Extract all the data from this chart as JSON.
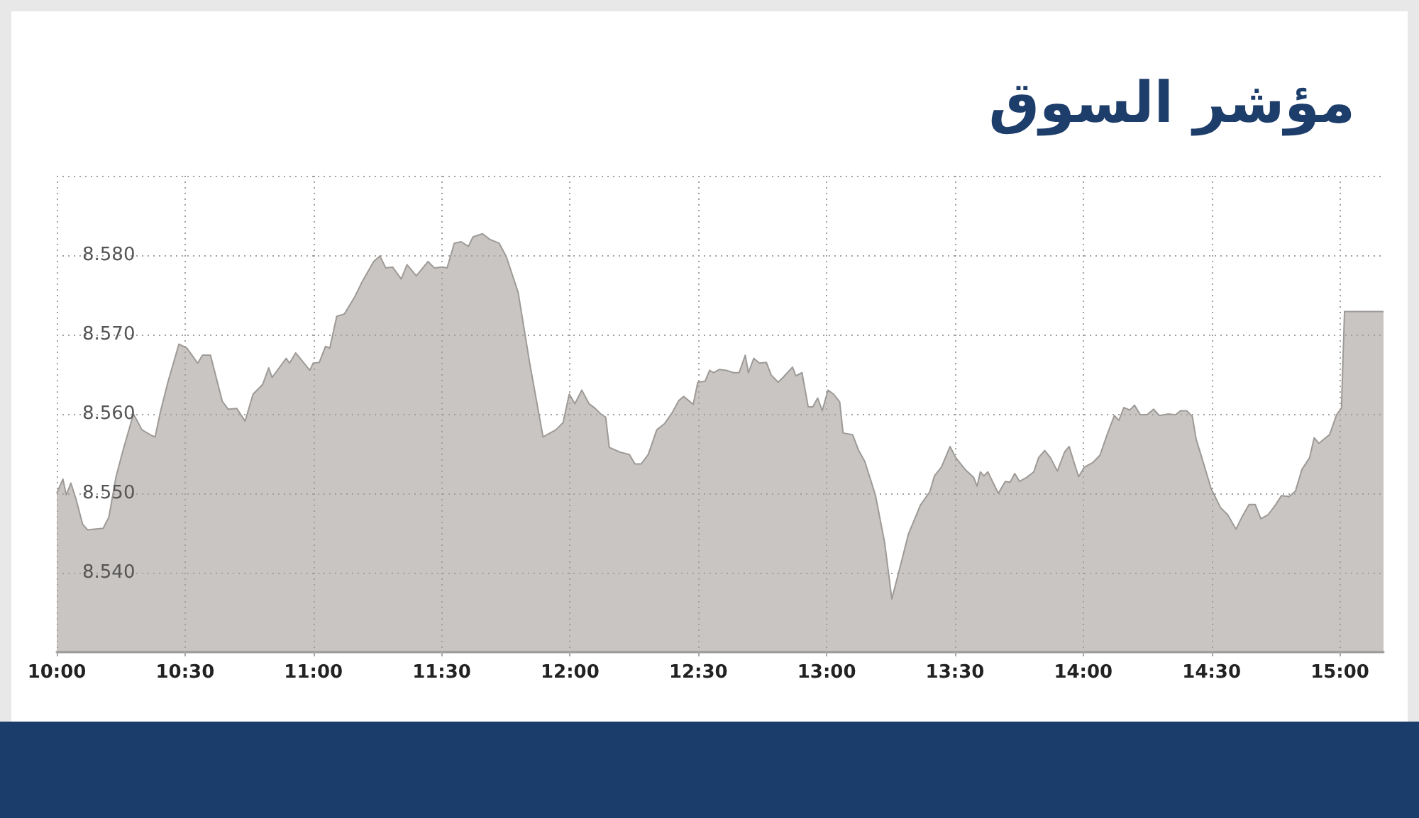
{
  "chart_data": {
    "type": "area",
    "title": "مؤشر السوق",
    "x": [
      10.0,
      10.024,
      10.037,
      10.055,
      10.074,
      10.101,
      10.12,
      10.181,
      10.203,
      10.231,
      10.258,
      10.299,
      10.332,
      10.369,
      10.383,
      10.405,
      10.433,
      10.476,
      10.507,
      10.549,
      10.568,
      10.599,
      10.645,
      10.668,
      10.701,
      10.734,
      10.765,
      10.802,
      10.826,
      10.839,
      10.894,
      10.907,
      10.931,
      10.986,
      10.999,
      11.023,
      11.047,
      11.064,
      11.091,
      11.121,
      11.162,
      11.189,
      11.235,
      11.259,
      11.282,
      11.309,
      11.342,
      11.365,
      11.401,
      11.447,
      11.471,
      11.503,
      11.521,
      11.549,
      11.576,
      11.604,
      11.622,
      11.659,
      11.687,
      11.724,
      11.752,
      11.798,
      11.843,
      11.895,
      11.945,
      11.973,
      11.997,
      12.019,
      12.046,
      12.074,
      12.098,
      12.12,
      12.139,
      12.153,
      12.194,
      12.231,
      12.253,
      12.277,
      12.305,
      12.338,
      12.369,
      12.397,
      12.424,
      12.443,
      12.48,
      12.498,
      12.526,
      12.544,
      12.559,
      12.581,
      12.609,
      12.637,
      12.659,
      12.683,
      12.695,
      12.716,
      12.738,
      12.765,
      12.784,
      12.811,
      12.83,
      12.867,
      12.88,
      12.904,
      12.928,
      12.946,
      12.965,
      12.983,
      13.005,
      13.027,
      13.051,
      13.064,
      13.101,
      13.125,
      13.149,
      13.19,
      13.226,
      13.254,
      13.282,
      13.319,
      13.365,
      13.402,
      13.42,
      13.447,
      13.481,
      13.503,
      13.54,
      13.573,
      13.586,
      13.599,
      13.613,
      13.628,
      13.669,
      13.696,
      13.715,
      13.733,
      13.752,
      13.779,
      13.807,
      13.826,
      13.85,
      13.872,
      13.899,
      13.927,
      13.945,
      13.964,
      13.982,
      14.004,
      14.038,
      14.065,
      14.093,
      14.121,
      14.139,
      14.158,
      14.181,
      14.2,
      14.222,
      14.249,
      14.274,
      14.296,
      14.332,
      14.36,
      14.379,
      14.403,
      14.425,
      14.44,
      14.462,
      14.498,
      14.535,
      14.563,
      14.595,
      14.618,
      14.646,
      14.67,
      14.692,
      14.72,
      14.746,
      14.772,
      14.802,
      14.827,
      14.852,
      14.882,
      14.9,
      14.918,
      14.937,
      14.96,
      14.987,
      15.006,
      15.018,
      15.17
    ],
    "values": [
      8.55,
      8.5518,
      8.5498,
      8.5513,
      8.5494,
      8.5461,
      8.5454,
      8.5456,
      8.547,
      8.5521,
      8.5554,
      8.56,
      8.558,
      8.5573,
      8.5571,
      8.5604,
      8.564,
      8.5688,
      8.5683,
      8.5664,
      8.5674,
      8.5674,
      8.5616,
      8.5606,
      8.5607,
      8.5591,
      8.5625,
      8.5637,
      8.5658,
      8.5646,
      8.567,
      8.5664,
      8.5677,
      8.5655,
      8.5664,
      8.5665,
      8.5685,
      8.5683,
      8.5723,
      8.5726,
      8.5748,
      8.5766,
      8.5792,
      8.5799,
      8.5784,
      8.5785,
      8.577,
      8.5788,
      8.5774,
      8.5792,
      8.5784,
      8.5785,
      8.5784,
      8.5815,
      8.5817,
      8.5811,
      8.5823,
      8.5827,
      8.582,
      8.5815,
      8.5798,
      8.5753,
      8.5664,
      8.5571,
      8.558,
      8.5589,
      8.5625,
      8.5613,
      8.563,
      8.5613,
      8.5607,
      8.56,
      8.5596,
      8.5558,
      8.5552,
      8.5549,
      8.5537,
      8.5537,
      8.5549,
      8.558,
      8.5588,
      8.5601,
      8.5617,
      8.5622,
      8.5612,
      8.564,
      8.5641,
      8.5655,
      8.5652,
      8.5656,
      8.5655,
      8.5652,
      8.5652,
      8.5674,
      8.5652,
      8.567,
      8.5664,
      8.5665,
      8.5649,
      8.564,
      8.5646,
      8.5659,
      8.5648,
      8.5652,
      8.5609,
      8.5609,
      8.562,
      8.5604,
      8.563,
      8.5625,
      8.5615,
      8.5576,
      8.5574,
      8.5554,
      8.554,
      8.5498,
      8.5438,
      8.5367,
      8.5402,
      8.5449,
      8.5485,
      8.5502,
      8.5522,
      8.5533,
      8.5559,
      8.5545,
      8.553,
      8.552,
      8.5509,
      8.5527,
      8.5522,
      8.5527,
      8.55,
      8.5515,
      8.5514,
      8.5525,
      8.5515,
      8.552,
      8.5527,
      8.5545,
      8.5554,
      8.5545,
      8.5528,
      8.5552,
      8.5559,
      8.5539,
      8.5521,
      8.5533,
      8.5539,
      8.5548,
      8.5574,
      8.5598,
      8.5592,
      8.5608,
      8.5605,
      8.5611,
      8.5599,
      8.5599,
      8.5606,
      8.5598,
      8.56,
      8.5599,
      8.5604,
      8.5604,
      8.5597,
      8.5568,
      8.5545,
      8.5506,
      8.5482,
      8.5473,
      8.5455,
      8.547,
      8.5486,
      8.5486,
      8.5468,
      8.5473,
      8.5484,
      8.5497,
      8.5496,
      8.5503,
      8.553,
      8.5545,
      8.557,
      8.5563,
      8.5568,
      8.5574,
      8.5599,
      8.5607,
      8.5729,
      8.5729
    ],
    "color": "#c9c5c2",
    "xlim": [
      10,
      15.17
    ],
    "xticks": [
      {
        "value": 10,
        "label": "10:00"
      },
      {
        "value": 10.5,
        "label": "10:30"
      },
      {
        "value": 11,
        "label": "11:00"
      },
      {
        "value": 11.5,
        "label": "11:30"
      },
      {
        "value": 12,
        "label": "12:00"
      },
      {
        "value": 12.5,
        "label": "12:30"
      },
      {
        "value": 13,
        "label": "13:00"
      },
      {
        "value": 13.5,
        "label": "13:30"
      },
      {
        "value": 14,
        "label": "14:00"
      },
      {
        "value": 14.5,
        "label": "14:30"
      },
      {
        "value": 15,
        "label": "15:00"
      }
    ],
    "ylim": [
      8.53,
      8.59
    ],
    "yticks": [
      {
        "value": 8.54,
        "label": "8.540"
      },
      {
        "value": 8.55,
        "label": "8.550"
      },
      {
        "value": 8.56,
        "label": "8.560"
      },
      {
        "value": 8.57,
        "label": "8.570"
      },
      {
        "value": 8.58,
        "label": "8.580"
      },
      {
        "value": 8.59,
        "label": null
      }
    ],
    "grid": true,
    "marker": "none"
  }
}
